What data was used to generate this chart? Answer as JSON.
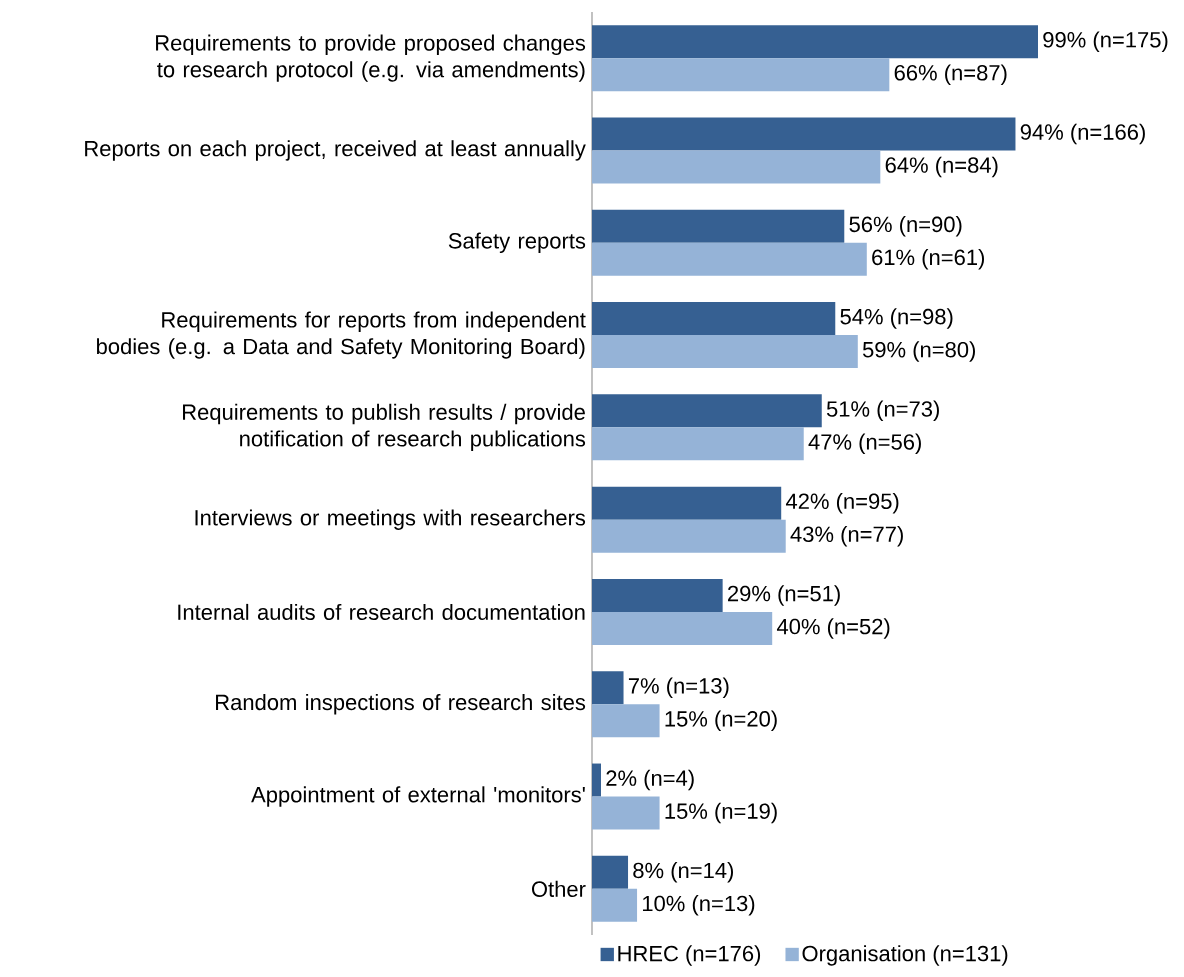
{
  "chart_data": {
    "type": "bar",
    "orientation": "horizontal",
    "categories": [
      "Requirements to provide proposed changes to research protocol (e.g. via amendments)",
      "Reports on each project, received at least annually",
      "Safety reports",
      "Requirements for reports from independent bodies (e.g. a Data and Safety Monitoring Board)",
      "Requirements to publish results / provide notification of research publications",
      "Interviews or meetings with researchers",
      "Internal audits of research documentation",
      "Random inspections of research sites",
      "Appointment of external 'monitors'",
      "Other"
    ],
    "series": [
      {
        "name": "HREC (n=176)",
        "color": "#366092",
        "values": [
          99,
          94,
          56,
          54,
          51,
          42,
          29,
          7,
          2,
          8
        ],
        "value_labels": [
          "99% (n=175)",
          "94% (n=166)",
          "56% (n=90)",
          "54% (n=98)",
          "51% (n=73)",
          "42% (n=95)",
          "29% (n=51)",
          "7% (n=13)",
          "2% (n=4)",
          "8% (n=14)"
        ]
      },
      {
        "name": "Organisation (n=131)",
        "color": "#95b3d7",
        "values": [
          66,
          64,
          61,
          59,
          47,
          43,
          40,
          15,
          15,
          10
        ],
        "value_labels": [
          "66% (n=87)",
          "64% (n=84)",
          "61% (n=61)",
          "59% (n=80)",
          "47% (n=56)",
          "43% (n=77)",
          "40% (n=52)",
          "15% (n=20)",
          "15% (n=19)",
          "10% (n=13)"
        ]
      }
    ],
    "legend": "bottom"
  }
}
